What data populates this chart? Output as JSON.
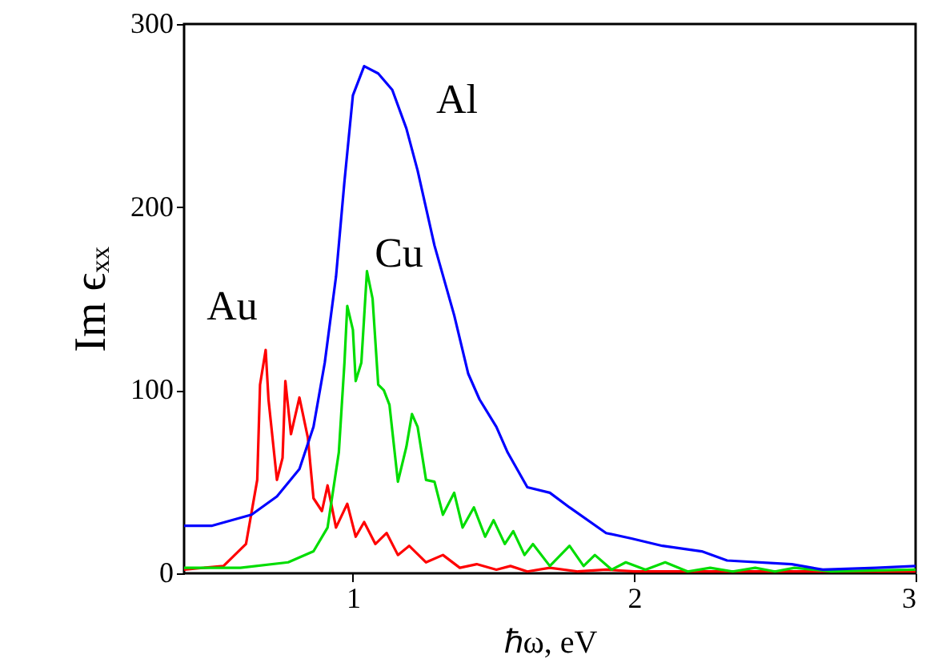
{
  "chart_data": {
    "type": "line",
    "xlabel": "ℏω, eV",
    "ylabel": "Im ϵₓₓ",
    "xlim": [
      0.4,
      3
    ],
    "ylim": [
      0,
      300
    ],
    "xticks": [
      1,
      2,
      3
    ],
    "yticks": [
      0,
      100,
      200,
      300
    ],
    "grid": false,
    "marker": "none",
    "line_style": "solid",
    "series": [
      {
        "name": "Au",
        "color": "#ff0000",
        "x": [
          0.4,
          0.54,
          0.62,
          0.66,
          0.67,
          0.69,
          0.7,
          0.73,
          0.75,
          0.76,
          0.78,
          0.81,
          0.84,
          0.86,
          0.89,
          0.91,
          0.94,
          0.98,
          1.01,
          1.04,
          1.08,
          1.12,
          1.16,
          1.2,
          1.26,
          1.32,
          1.38,
          1.44,
          1.51,
          1.56,
          1.62,
          1.7,
          1.8,
          1.9,
          2.0,
          2.3,
          2.6,
          3.0
        ],
        "values": [
          2,
          4,
          16,
          51,
          103,
          122,
          95,
          51,
          63,
          105,
          76,
          96,
          74,
          41,
          34,
          48,
          25,
          38,
          20,
          28,
          16,
          22,
          10,
          15,
          6,
          10,
          3,
          5,
          2,
          4,
          1,
          3,
          1,
          2,
          1,
          1,
          1,
          1
        ]
      },
      {
        "name": "Cu",
        "color": "#00dd00",
        "x": [
          0.4,
          0.6,
          0.77,
          0.86,
          0.91,
          0.95,
          0.97,
          0.98,
          1.0,
          1.01,
          1.03,
          1.05,
          1.07,
          1.09,
          1.11,
          1.13,
          1.16,
          1.19,
          1.21,
          1.23,
          1.26,
          1.29,
          1.32,
          1.36,
          1.39,
          1.43,
          1.47,
          1.5,
          1.54,
          1.57,
          1.61,
          1.64,
          1.7,
          1.77,
          1.82,
          1.86,
          1.92,
          1.97,
          2.04,
          2.11,
          2.19,
          2.27,
          2.35,
          2.43,
          2.5,
          2.57,
          2.7,
          3.0
        ],
        "values": [
          3,
          3,
          6,
          12,
          25,
          66,
          115,
          146,
          133,
          105,
          115,
          165,
          150,
          103,
          100,
          92,
          50,
          69,
          87,
          80,
          51,
          50,
          32,
          44,
          25,
          36,
          20,
          29,
          16,
          23,
          10,
          16,
          4,
          15,
          4,
          10,
          2,
          6,
          2,
          6,
          1,
          3,
          1,
          3,
          1,
          3,
          1,
          2
        ]
      },
      {
        "name": "Al",
        "color": "#0000ff",
        "x": [
          0.4,
          0.5,
          0.64,
          0.73,
          0.81,
          0.86,
          0.9,
          0.94,
          0.97,
          1.0,
          1.04,
          1.09,
          1.14,
          1.19,
          1.23,
          1.29,
          1.36,
          1.41,
          1.45,
          1.51,
          1.55,
          1.62,
          1.7,
          1.77,
          1.9,
          1.99,
          2.1,
          2.24,
          2.33,
          2.56,
          2.67,
          2.86,
          3.0
        ],
        "values": [
          26,
          26,
          32,
          42,
          57,
          80,
          115,
          162,
          214,
          261,
          277,
          273,
          264,
          243,
          220,
          179,
          141,
          109,
          95,
          80,
          66,
          47,
          44,
          36,
          22,
          19,
          15,
          12,
          7,
          5,
          2,
          3,
          4
        ]
      }
    ]
  }
}
